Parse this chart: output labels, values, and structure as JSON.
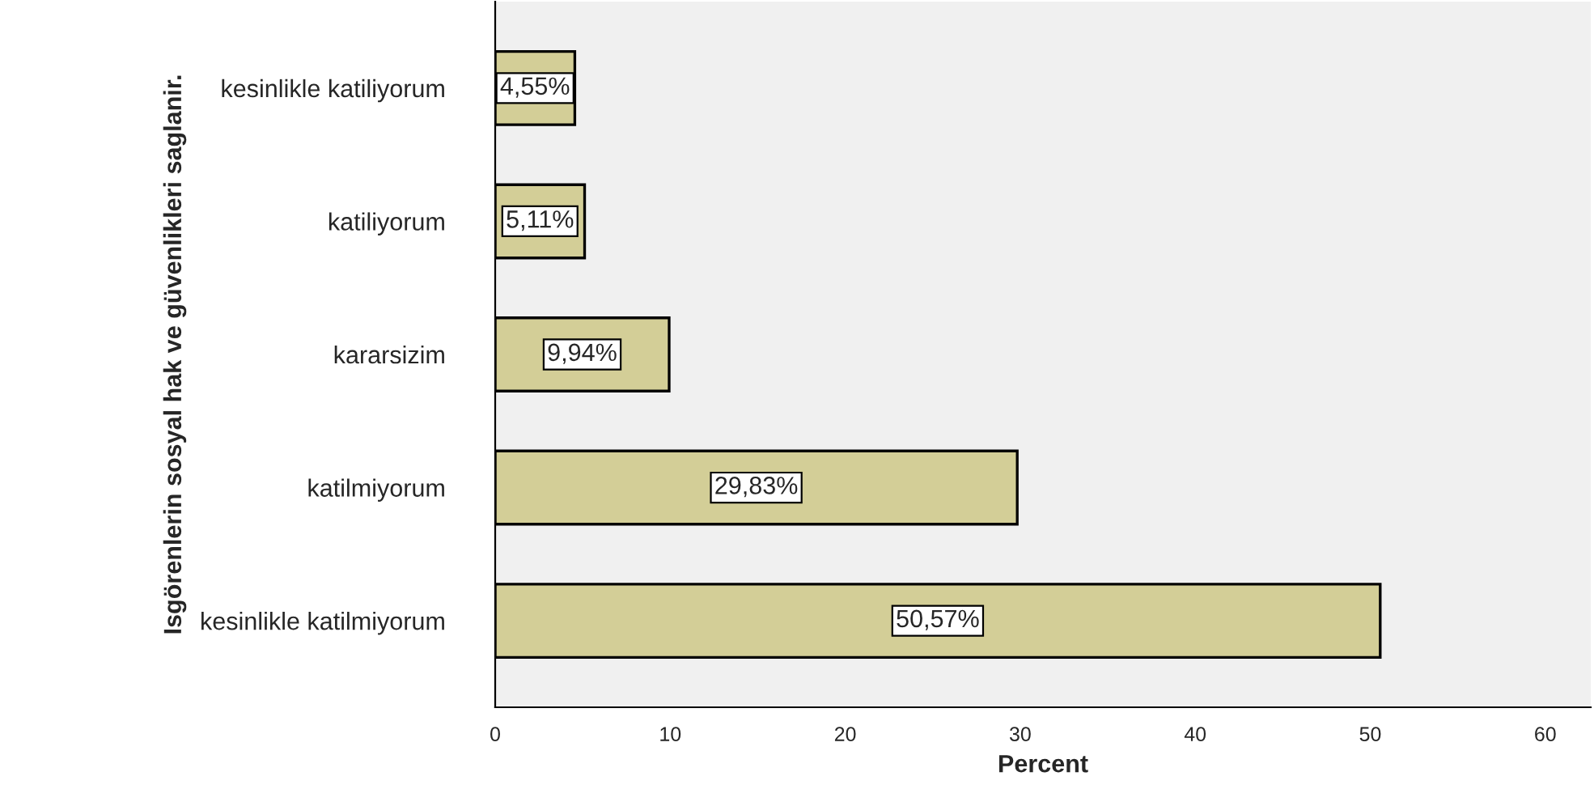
{
  "chart_data": {
    "type": "bar",
    "orientation": "horizontal",
    "xlabel": "Percent",
    "ylabel": "Isgörenlerin sosyal hak ve güvenlikleri saglanir.",
    "categories": [
      "kesinlikle katiliyorum",
      "katiliyorum",
      "kararsizim",
      "katilmiyorum",
      "kesinlikle katilmiyorum"
    ],
    "values": [
      4.55,
      5.11,
      9.94,
      29.83,
      50.57
    ],
    "value_labels": [
      "4,55%",
      "5,11%",
      "9,94%",
      "29,83%",
      "50,57%"
    ],
    "color": "#d3ce97",
    "xlim": [
      0,
      62.6
    ],
    "xticks": [
      0,
      10,
      20,
      30,
      40,
      50,
      60
    ],
    "grid": false,
    "legend": false
  }
}
